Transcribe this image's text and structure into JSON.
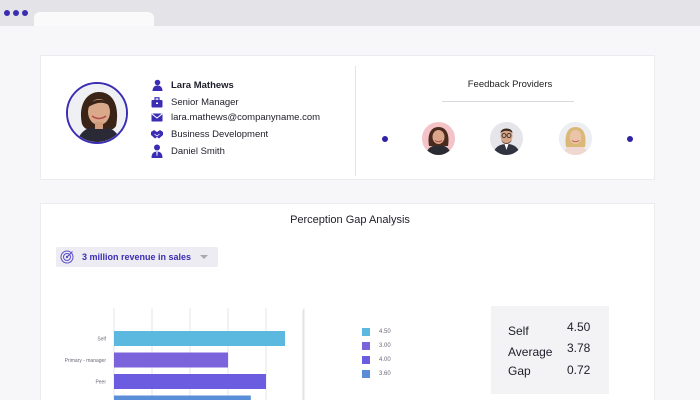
{
  "profile": {
    "name": "Lara Mathews",
    "title": "Senior Manager",
    "email": "lara.mathews@companyname.com",
    "department": "Business Development",
    "manager": "Daniel Smith",
    "avatar_icon": "profile-photo"
  },
  "feedback_providers": {
    "title": "Feedback Providers",
    "providers": [
      {
        "icon": "woman-dark-hair-avatar"
      },
      {
        "icon": "man-glasses-avatar"
      },
      {
        "icon": "woman-blonde-avatar"
      }
    ]
  },
  "analysis": {
    "title": "Perception Gap Analysis",
    "goal": {
      "label": "3 million revenue in sales",
      "icon": "target-icon"
    },
    "stats": [
      {
        "label": "Self",
        "value": "4.50"
      },
      {
        "label": "Average",
        "value": "3.78"
      },
      {
        "label": "Gap",
        "value": "0.72"
      }
    ],
    "legend": [
      {
        "label": "4.50",
        "color": "#5bb8de"
      },
      {
        "label": "3.00",
        "color": "#7b63db"
      },
      {
        "label": "4.00",
        "color": "#6b5ce0"
      },
      {
        "label": "3.60",
        "color": "#5a8ed8"
      }
    ]
  },
  "chart_data": {
    "type": "bar",
    "orientation": "horizontal",
    "categories": [
      "Self",
      "Primary - manager",
      "Peer",
      ""
    ],
    "values": [
      4.5,
      3.0,
      4.0,
      3.6
    ],
    "colors": [
      "#5bb8de",
      "#7b63db",
      "#6b5ce0",
      "#5a8ed8"
    ],
    "xlim": [
      0,
      5
    ],
    "grid": true
  },
  "colors": {
    "accent": "#3b2db3",
    "background": "#f7f7f9"
  }
}
